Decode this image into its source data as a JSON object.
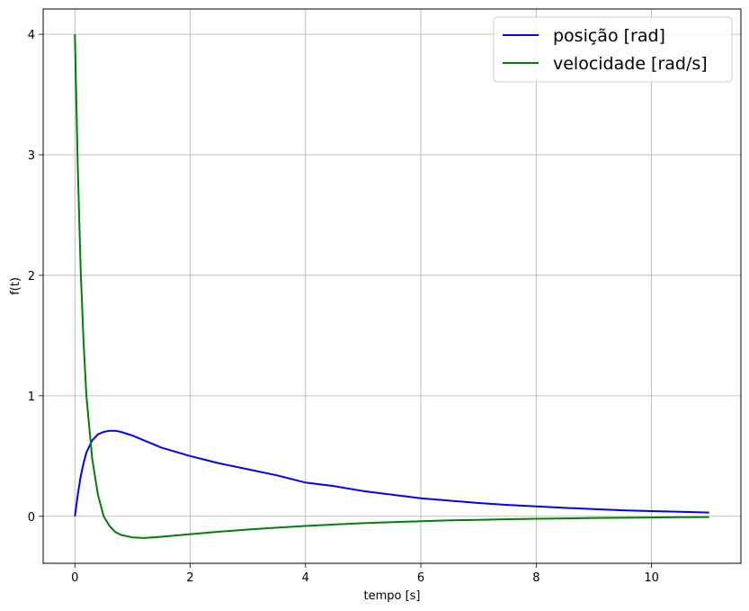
{
  "chart_data": {
    "type": "line",
    "title": "",
    "xlabel": "tempo [s]",
    "ylabel": "f(t)",
    "xlim": [
      -0.55,
      11.55
    ],
    "ylim": [
      -0.39,
      4.21
    ],
    "xticks": [
      0,
      2,
      4,
      6,
      8,
      10
    ],
    "yticks": [
      0,
      1,
      2,
      3,
      4
    ],
    "xtick_labels": [
      "0",
      "2",
      "4",
      "6",
      "8",
      "10"
    ],
    "ytick_labels": [
      "0",
      "1",
      "2",
      "3",
      "4"
    ],
    "grid": true,
    "legend_position": "top-right",
    "series": [
      {
        "name": "posição [rad]",
        "color": "#0000ff",
        "x": [
          0,
          0.05,
          0.1,
          0.15,
          0.2,
          0.3,
          0.4,
          0.5,
          0.6,
          0.7,
          0.8,
          1.0,
          1.2,
          1.5,
          2.0,
          2.5,
          3.0,
          3.5,
          4.0,
          4.5,
          5.0,
          5.5,
          6.0,
          6.5,
          7.0,
          7.5,
          8.0,
          8.5,
          9.0,
          9.5,
          10.0,
          10.5,
          11.0
        ],
        "y": [
          0,
          0.18,
          0.33,
          0.44,
          0.53,
          0.63,
          0.68,
          0.7,
          0.71,
          0.71,
          0.7,
          0.67,
          0.63,
          0.57,
          0.5,
          0.44,
          0.39,
          0.34,
          0.28,
          0.25,
          0.21,
          0.18,
          0.15,
          0.13,
          0.11,
          0.095,
          0.082,
          0.07,
          0.06,
          0.05,
          0.043,
          0.037,
          0.031
        ]
      },
      {
        "name": "velocidade [rad/s]",
        "color": "#008000",
        "x": [
          0,
          0.05,
          0.1,
          0.15,
          0.2,
          0.3,
          0.4,
          0.5,
          0.6,
          0.7,
          0.8,
          1.0,
          1.2,
          1.5,
          2.0,
          2.5,
          3.0,
          3.5,
          4.0,
          4.5,
          5.0,
          5.5,
          6.0,
          6.5,
          7.0,
          7.5,
          8.0,
          8.5,
          9.0,
          9.5,
          10.0,
          10.5,
          11.0
        ],
        "y": [
          4.0,
          2.9,
          2.05,
          1.45,
          1.0,
          0.48,
          0.18,
          0.0,
          -0.08,
          -0.13,
          -0.155,
          -0.175,
          -0.18,
          -0.17,
          -0.148,
          -0.128,
          -0.11,
          -0.094,
          -0.08,
          -0.068,
          -0.057,
          -0.048,
          -0.041,
          -0.034,
          -0.029,
          -0.024,
          -0.02,
          -0.017,
          -0.014,
          -0.012,
          -0.01,
          -0.008,
          -0.006
        ]
      }
    ]
  }
}
